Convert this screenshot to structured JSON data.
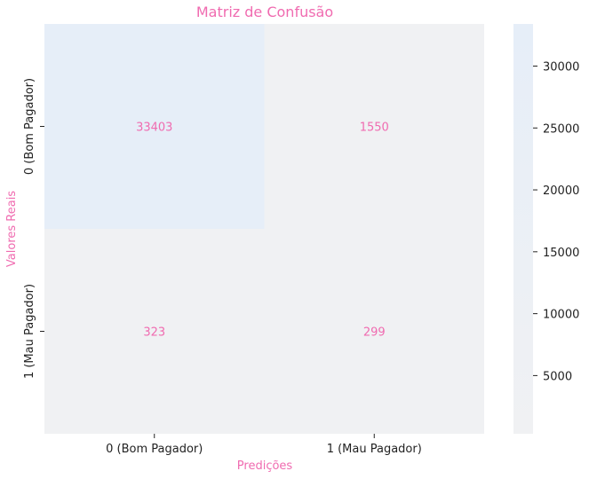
{
  "chart_data": {
    "type": "heatmap",
    "title": "Matriz de Confusão",
    "xlabel": "Predições",
    "ylabel": "Valores Reais",
    "x_categories": [
      "0 (Bom Pagador)",
      "1 (Mau Pagador)"
    ],
    "y_categories": [
      "0 (Bom Pagador)",
      "1 (Mau Pagador)"
    ],
    "values": [
      [
        33403,
        1550
      ],
      [
        323,
        299
      ]
    ],
    "colorbar": {
      "range": [
        299,
        33403
      ],
      "ticks": [
        5000,
        10000,
        15000,
        20000,
        25000,
        30000
      ],
      "color_low": "#f0f1f3",
      "color_high": "#e6eef8"
    },
    "text_color": "#f06bb0"
  }
}
